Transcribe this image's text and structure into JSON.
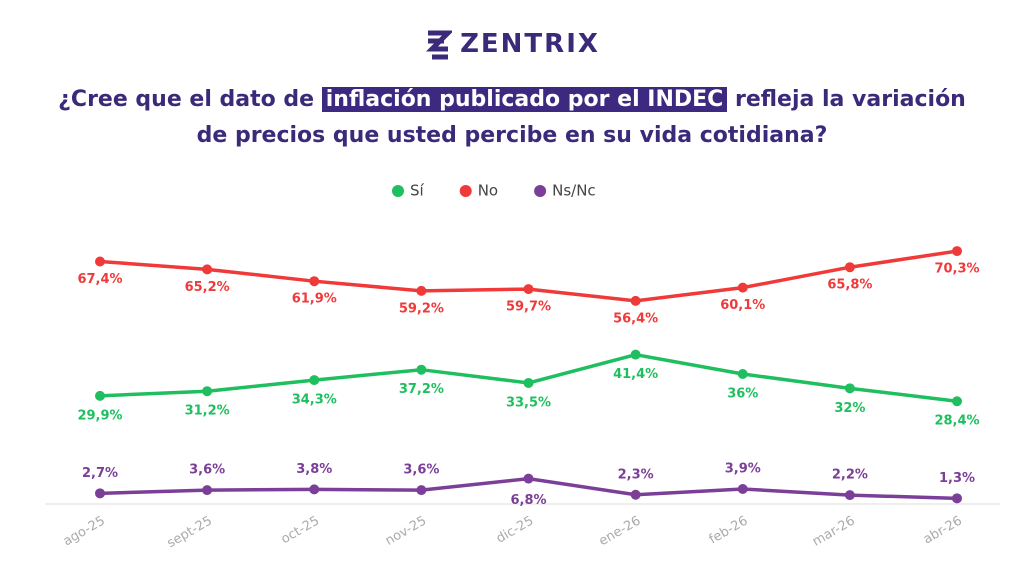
{
  "brand": "ZENTRIX",
  "chart_data": {
    "type": "line",
    "title": [
      "¿Cree que el dato de",
      "inflación publicado por el INDEC",
      "refleja la variación",
      "de precios que usted percibe en su vida cotidiana?"
    ],
    "categories": [
      "ago-25",
      "sept-25",
      "oct-25",
      "nov-25",
      "dic-25",
      "ene-26",
      "feb-26",
      "mar-26",
      "abr-26"
    ],
    "ylim": [
      0,
      72
    ],
    "series": [
      {
        "name": "Sí",
        "color": "#1fbf5f",
        "values": [
          29.9,
          31.2,
          34.3,
          37.2,
          33.5,
          41.4,
          36,
          32,
          28.4
        ],
        "value_labels": [
          "29,9%",
          "31,2%",
          "34,3%",
          "37,2%",
          "33,5%",
          "41,4%",
          "36%",
          "32%",
          "28,4%"
        ]
      },
      {
        "name": "No",
        "color": "#f03a3a",
        "values": [
          67.4,
          65.2,
          61.9,
          59.2,
          59.7,
          56.4,
          60.1,
          65.8,
          70.3
        ],
        "value_labels": [
          "67,4%",
          "65,2%",
          "61,9%",
          "59,2%",
          "59,7%",
          "56,4%",
          "60,1%",
          "65,8%",
          "70,3%"
        ]
      },
      {
        "name": "Ns/Nc",
        "color": "#7b3f98",
        "values": [
          2.7,
          3.6,
          3.8,
          3.6,
          6.8,
          2.3,
          3.9,
          2.2,
          1.3
        ],
        "value_labels": [
          "2,7%",
          "3,6%",
          "3,8%",
          "3,6%",
          "6,8%",
          "2,3%",
          "3,9%",
          "2,2%",
          "1,3%"
        ]
      }
    ]
  }
}
